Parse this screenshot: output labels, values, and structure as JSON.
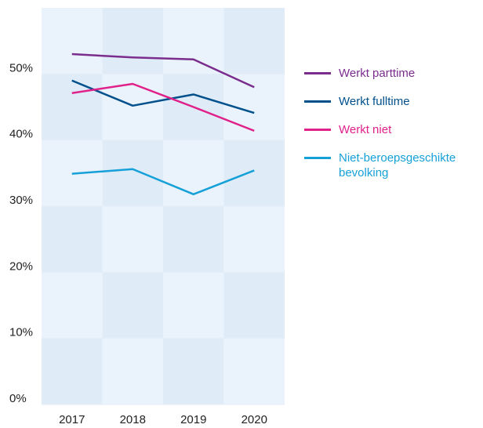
{
  "chart_data": {
    "type": "line",
    "categories": [
      "2017",
      "2018",
      "2019",
      "2020"
    ],
    "series": [
      {
        "name": "Werkt parttime",
        "color": "#7b2d8e",
        "values": [
          53.0,
          52.5,
          52.2,
          48.0
        ]
      },
      {
        "name": "Werkt fulltime",
        "color": "#00508c",
        "values": [
          49.0,
          45.2,
          46.9,
          44.1
        ]
      },
      {
        "name": "Werkt niet",
        "color": "#e0218a",
        "values": [
          47.1,
          48.5,
          45.0,
          41.4
        ]
      },
      {
        "name": "Niet-beroepsgeschikte bevolking",
        "color": "#16a0d8",
        "values": [
          34.9,
          35.6,
          31.8,
          35.4
        ]
      }
    ],
    "ylim": [
      0,
      60
    ],
    "yticks": [
      {
        "value": 0,
        "label": "0%"
      },
      {
        "value": 10,
        "label": "10%"
      },
      {
        "value": 20,
        "label": "20%"
      },
      {
        "value": 30,
        "label": "30%"
      },
      {
        "value": 40,
        "label": "40%"
      },
      {
        "value": 50,
        "label": "50%"
      }
    ],
    "grid": true,
    "legend": "right"
  }
}
